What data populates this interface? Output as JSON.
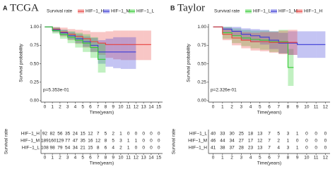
{
  "chart_data": [
    {
      "type": "line",
      "panel_label": "A",
      "title": "TCGA",
      "legend_title": "Survival rate",
      "xlabel": "Time(years)",
      "ylabel": "Survival probability",
      "annotation": "p=5.353e-01",
      "xlim": [
        -0.5,
        15.5
      ],
      "xticks": [
        0,
        1,
        2,
        3,
        4,
        5,
        6,
        7,
        8,
        9,
        10,
        11,
        12,
        13,
        14,
        15
      ],
      "ylim": [
        -0.02,
        1.04
      ],
      "yticks": [
        {
          "value": 0,
          "label": "0.00"
        },
        {
          "value": 0.25,
          "label": "0.25"
        },
        {
          "value": 0.5,
          "label": "0.50"
        },
        {
          "value": 0.75,
          "label": "0.75"
        },
        {
          "value": 1,
          "label": "1.00"
        }
      ],
      "series": [
        {
          "name": "HIF−1_H",
          "color": "#e8413e",
          "x": [
            0,
            1,
            2,
            3,
            4,
            5,
            6,
            7,
            8,
            9,
            10,
            11,
            12,
            13,
            14
          ],
          "values": [
            1,
            0.97,
            0.93,
            0.9,
            0.87,
            0.84,
            0.8,
            0.78,
            0.76,
            0.76,
            0.76,
            0.76,
            0.76,
            0.76,
            0.76
          ],
          "lower": [
            1,
            0.93,
            0.87,
            0.82,
            0.77,
            0.72,
            0.66,
            0.62,
            0.58,
            0.56,
            0.55,
            0.55,
            0.55,
            0.55,
            0.55
          ],
          "upper": [
            1,
            1,
            0.99,
            0.97,
            0.96,
            0.95,
            0.93,
            0.93,
            0.94,
            0.95,
            0.95,
            0.95,
            0.95,
            0.95,
            0.95
          ]
        },
        {
          "name": "HIF−1_M",
          "color": "#3b3bd6",
          "x": [
            0,
            1,
            2,
            3,
            4,
            5,
            6,
            7,
            8,
            9,
            10,
            11,
            12
          ],
          "values": [
            1,
            0.96,
            0.92,
            0.88,
            0.84,
            0.8,
            0.75,
            0.66,
            0.66,
            0.66,
            0.66,
            0.66,
            0.66
          ],
          "lower": [
            1,
            0.93,
            0.88,
            0.83,
            0.78,
            0.73,
            0.66,
            0.5,
            0.46,
            0.44,
            0.43,
            0.43,
            0.43
          ],
          "upper": [
            1,
            0.99,
            0.96,
            0.93,
            0.9,
            0.87,
            0.85,
            0.82,
            0.84,
            0.86,
            0.86,
            0.86,
            0.86
          ]
        },
        {
          "name": "HIF−1_L",
          "color": "#33cc33",
          "x": [
            0,
            1,
            2,
            3,
            4,
            5,
            6,
            7,
            8
          ],
          "values": [
            1,
            0.95,
            0.9,
            0.86,
            0.82,
            0.78,
            0.72,
            0.56,
            0.56
          ],
          "lower": [
            1,
            0.91,
            0.84,
            0.78,
            0.72,
            0.66,
            0.58,
            0.38,
            0.36
          ],
          "upper": [
            1,
            0.99,
            0.96,
            0.94,
            0.92,
            0.9,
            0.86,
            0.78,
            0.8
          ]
        }
      ],
      "risk_table": {
        "title": "Survival rate",
        "xlabel": "Time(years)",
        "rows": [
          {
            "name": "HIF−1_H",
            "color": "#e8413e",
            "values": [
              92,
              82,
              56,
              35,
              24,
              15,
              12,
              7,
              5,
              2,
              1,
              0,
              0,
              0,
              0,
              0
            ]
          },
          {
            "name": "HIF−1_M",
            "color": "#3b3bd6",
            "values": [
              189,
              160,
              129,
              77,
              47,
              35,
              16,
              12,
              8,
              5,
              3,
              1,
              1,
              0,
              0,
              0
            ]
          },
          {
            "name": "HIF−1_L",
            "color": "#33cc33",
            "values": [
              108,
              98,
              79,
              54,
              34,
              21,
              15,
              8,
              6,
              4,
              2,
              1,
              0,
              0,
              0,
              0
            ]
          }
        ]
      }
    },
    {
      "type": "line",
      "panel_label": "B",
      "title": "Taylor",
      "legend_title": "Survival rate",
      "xlabel": "Time(years)",
      "ylabel": "Survival probability",
      "annotation": "p=2.326e-01",
      "xlim": [
        -0.5,
        12.5
      ],
      "xticks": [
        0,
        1,
        2,
        3,
        4,
        5,
        6,
        7,
        8,
        9,
        10,
        11,
        12
      ],
      "ylim": [
        -0.02,
        1.04
      ],
      "yticks": [
        {
          "value": 0,
          "label": "0.00"
        },
        {
          "value": 0.25,
          "label": "0.25"
        },
        {
          "value": 0.5,
          "label": "0.50"
        },
        {
          "value": 0.75,
          "label": "0.75"
        },
        {
          "value": 1,
          "label": "1.00"
        }
      ],
      "series": [
        {
          "name": "HIF−1_L",
          "color": "#33cc33",
          "x": [
            0,
            1,
            2,
            3,
            4,
            5,
            6,
            7,
            8,
            8.6
          ],
          "values": [
            1,
            0.92,
            0.88,
            0.85,
            0.83,
            0.82,
            0.8,
            0.8,
            0.45,
            0.45
          ],
          "lower": [
            1,
            0.84,
            0.78,
            0.74,
            0.71,
            0.69,
            0.66,
            0.64,
            0.2,
            0.2
          ],
          "upper": [
            1,
            1,
            0.98,
            0.96,
            0.95,
            0.95,
            0.94,
            0.96,
            0.7,
            0.7
          ]
        },
        {
          "name": "HIF−1_M",
          "color": "#3b3bd6",
          "x": [
            0,
            1,
            2,
            3,
            4,
            5,
            6,
            7,
            8,
            9,
            10,
            11,
            12
          ],
          "values": [
            1,
            0.97,
            0.94,
            0.9,
            0.88,
            0.86,
            0.82,
            0.78,
            0.78,
            0.76,
            0.76,
            0.76,
            0.76
          ],
          "lower": [
            1,
            0.92,
            0.87,
            0.82,
            0.79,
            0.76,
            0.7,
            0.64,
            0.62,
            0.58,
            0.58,
            0.58,
            0.58
          ],
          "upper": [
            1,
            1,
            1,
            0.98,
            0.97,
            0.96,
            0.94,
            0.92,
            0.94,
            0.94,
            0.94,
            0.94,
            0.94
          ]
        },
        {
          "name": "HIF−1_H",
          "color": "#e8413e",
          "x": [
            0,
            1,
            2,
            3,
            4,
            5,
            6,
            7,
            8,
            9
          ],
          "values": [
            1,
            0.9,
            0.85,
            0.82,
            0.8,
            0.8,
            0.79,
            0.79,
            0.79,
            0.79
          ],
          "lower": [
            1,
            0.82,
            0.75,
            0.71,
            0.68,
            0.67,
            0.65,
            0.63,
            0.62,
            0.62
          ],
          "upper": [
            1,
            0.98,
            0.95,
            0.93,
            0.92,
            0.93,
            0.93,
            0.95,
            0.96,
            0.96
          ]
        }
      ],
      "risk_table": {
        "title": "Survival rate",
        "xlabel": "Time(years)",
        "rows": [
          {
            "name": "HIF−1_L",
            "color": "#33cc33",
            "values": [
              40,
              33,
              30,
              25,
              18,
              13,
              7,
              5,
              3,
              1,
              0,
              0,
              0
            ]
          },
          {
            "name": "HIF−1_M",
            "color": "#3b3bd6",
            "values": [
              46,
              44,
              34,
              27,
              17,
              12,
              7,
              2,
              1,
              0,
              0,
              0,
              0
            ]
          },
          {
            "name": "HIF−1_H",
            "color": "#e8413e",
            "values": [
              41,
              38,
              37,
              28,
              23,
              13,
              7,
              4,
              3,
              1,
              0,
              0,
              0
            ]
          }
        ]
      }
    }
  ]
}
